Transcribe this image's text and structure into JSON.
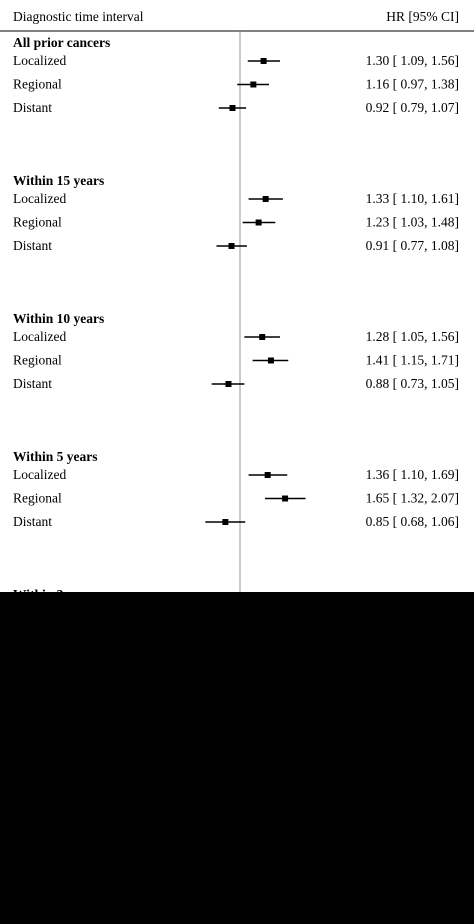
{
  "chart_data": {
    "type": "scatter",
    "plot_style": "forest",
    "header": {
      "left": "Diagnostic time interval",
      "right": "HR [95% CI]"
    },
    "reference_value": 1.0,
    "x_scale": "log",
    "xlim": [
      0.62,
      2.2
    ],
    "grid": false,
    "legend": "none",
    "colors": {
      "marker": "#000000",
      "line": "#000000",
      "reference": "#9a9a9a"
    },
    "groups": [
      {
        "title": "All prior cancers",
        "rows": [
          {
            "label": "Localized",
            "hr": 1.3,
            "lo": 1.09,
            "hi": 1.56,
            "text": "1.30 [ 1.09,  1.56]"
          },
          {
            "label": "Regional",
            "hr": 1.16,
            "lo": 0.97,
            "hi": 1.38,
            "text": "1.16 [ 0.97,  1.38]"
          },
          {
            "label": "Distant",
            "hr": 0.92,
            "lo": 0.79,
            "hi": 1.07,
            "text": "0.92 [ 0.79,  1.07]"
          }
        ]
      },
      {
        "title": "Within 15 years",
        "rows": [
          {
            "label": "Localized",
            "hr": 1.33,
            "lo": 1.1,
            "hi": 1.61,
            "text": "1.33 [ 1.10,  1.61]"
          },
          {
            "label": "Regional",
            "hr": 1.23,
            "lo": 1.03,
            "hi": 1.48,
            "text": "1.23 [ 1.03,  1.48]"
          },
          {
            "label": "Distant",
            "hr": 0.91,
            "lo": 0.77,
            "hi": 1.08,
            "text": "0.91 [ 0.77,  1.08]"
          }
        ]
      },
      {
        "title": "Within 10 years",
        "rows": [
          {
            "label": "Localized",
            "hr": 1.28,
            "lo": 1.05,
            "hi": 1.56,
            "text": "1.28 [ 1.05,  1.56]"
          },
          {
            "label": "Regional",
            "hr": 1.41,
            "lo": 1.15,
            "hi": 1.71,
            "text": "1.41 [ 1.15,  1.71]"
          },
          {
            "label": "Distant",
            "hr": 0.88,
            "lo": 0.73,
            "hi": 1.05,
            "text": "0.88 [ 0.73,  1.05]"
          }
        ]
      },
      {
        "title": "Within 5 years",
        "rows": [
          {
            "label": "Localized",
            "hr": 1.36,
            "lo": 1.1,
            "hi": 1.69,
            "text": "1.36 [ 1.10,  1.69]"
          },
          {
            "label": "Regional",
            "hr": 1.65,
            "lo": 1.32,
            "hi": 2.07,
            "text": "1.65 [ 1.32,  2.07]"
          },
          {
            "label": "Distant",
            "hr": 0.85,
            "lo": 0.68,
            "hi": 1.06,
            "text": "0.85 [ 0.68,  1.06]"
          }
        ]
      }
    ],
    "partial_title": "Within 3"
  }
}
